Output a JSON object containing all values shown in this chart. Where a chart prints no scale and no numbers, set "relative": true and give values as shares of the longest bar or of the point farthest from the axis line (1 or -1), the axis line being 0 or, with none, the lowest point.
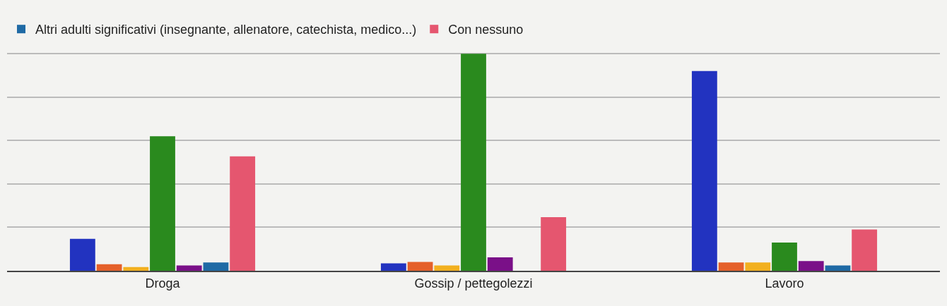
{
  "chart_data": {
    "type": "bar",
    "relative": true,
    "grid": "y",
    "legend": "top left",
    "categories": [
      "Droga",
      "Gossip / pettegolezzi",
      "Lavoro"
    ],
    "series": [
      {
        "color": "#2233c0",
        "values": [
          0.147,
          0.034,
          0.92
        ]
      },
      {
        "color": "#e5602a",
        "values": [
          0.03,
          0.041,
          0.038
        ]
      },
      {
        "color": "#f2b01f",
        "values": [
          0.017,
          0.024,
          0.038
        ]
      },
      {
        "color": "#2a8a1e",
        "values": [
          0.62,
          1,
          0.13
        ]
      },
      {
        "color": "#7a1088",
        "values": [
          0.024,
          0.062,
          0.045
        ]
      },
      {
        "name": "Altri adulti significativi (insegnante, allenatore, catechista, medico...)",
        "color": "#1f6aa5",
        "values": [
          0.038,
          0,
          0.024
        ]
      },
      {
        "name": "Con nessuno",
        "color": "#e5566f",
        "values": [
          0.527,
          0.247,
          0.19
        ]
      }
    ]
  }
}
